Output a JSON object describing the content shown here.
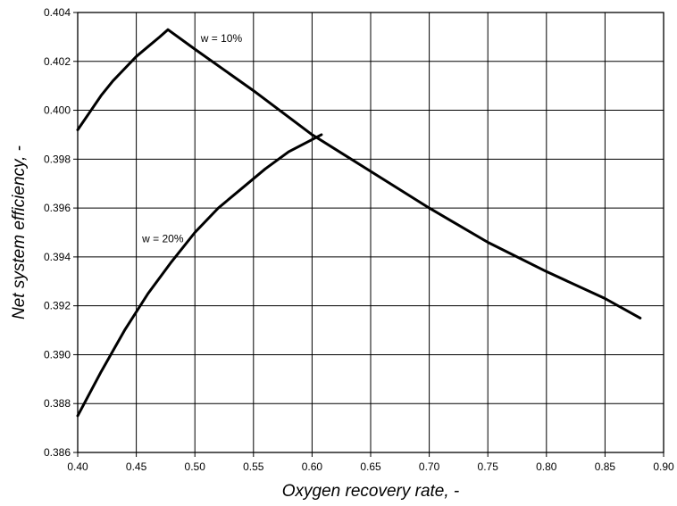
{
  "chart_data": {
    "type": "line",
    "title": "",
    "xlabel": "Oxygen recovery rate, -",
    "ylabel": "Net system efficiency, -",
    "xlim": [
      0.4,
      0.9
    ],
    "ylim": [
      0.386,
      0.404
    ],
    "x_ticks": [
      "0.40",
      "0.45",
      "0.50",
      "0.55",
      "0.60",
      "0.65",
      "0.70",
      "0.75",
      "0.80",
      "0.85",
      "0.90"
    ],
    "y_ticks": [
      "0.386",
      "0.388",
      "0.390",
      "0.392",
      "0.394",
      "0.396",
      "0.398",
      "0.400",
      "0.402",
      "0.404"
    ],
    "grid": true,
    "legend": "none",
    "line_color": "#000000",
    "series": [
      {
        "x": [
          0.4,
          0.41,
          0.42,
          0.43,
          0.44,
          0.45,
          0.46,
          0.47,
          0.477,
          0.5,
          0.55,
          0.6,
          0.65,
          0.7,
          0.75,
          0.8,
          0.85,
          0.88
        ],
        "y": [
          0.3992,
          0.3999,
          0.4006,
          0.4012,
          0.4017,
          0.4022,
          0.4026,
          0.403,
          0.4033,
          0.4025,
          0.4008,
          0.399,
          0.3975,
          0.396,
          0.3946,
          0.3934,
          0.3923,
          0.3915
        ]
      },
      {
        "x": [
          0.4,
          0.42,
          0.44,
          0.46,
          0.48,
          0.5,
          0.52,
          0.54,
          0.56,
          0.58,
          0.6,
          0.608
        ],
        "y": [
          0.3875,
          0.3893,
          0.391,
          0.3925,
          0.3938,
          0.395,
          0.396,
          0.3968,
          0.3976,
          0.3983,
          0.3988,
          0.399
        ]
      }
    ],
    "annotations": [
      {
        "text": "w = 10%",
        "x": 0.505,
        "y": 0.4028
      },
      {
        "text": "w = 20%",
        "x": 0.455,
        "y": 0.3946
      }
    ]
  }
}
